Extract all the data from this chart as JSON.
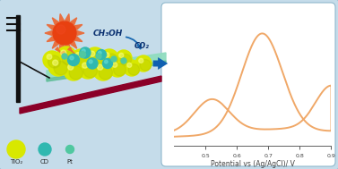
{
  "bg_color": "#c5dcea",
  "panel_bg": "#ffffff",
  "cv_color": "#f0a868",
  "cv_linewidth": 1.4,
  "xlabel": "Potential vs (Ag/AgCl)/ V",
  "xlim": [
    0.4,
    0.9
  ],
  "xticks": [
    0.5,
    0.6,
    0.7,
    0.8,
    0.9
  ],
  "xlabel_fontsize": 5.5,
  "tick_fontsize": 4.5,
  "sphere_yellow": "#d8e800",
  "sphere_yellow_dark": "#b0c000",
  "sphere_cyan": "#30b8b0",
  "sphere_cyan_light": "#60d8d0",
  "sphere_pt": "#50c8a0",
  "electrode_color": "#8b0028",
  "plate_color": "#90ddc0",
  "plate_dark": "#60b898",
  "arrow_color": "#1060b0",
  "sun_body": "#e84010",
  "sun_ray": "#e87040",
  "ch3oh_text": "CH₃OH",
  "co2_text": "CO₂",
  "label_fontsize": 6.5,
  "legend_labels": [
    "TiO₂",
    "CD",
    "Pt"
  ],
  "border_color": "#90b8cc"
}
